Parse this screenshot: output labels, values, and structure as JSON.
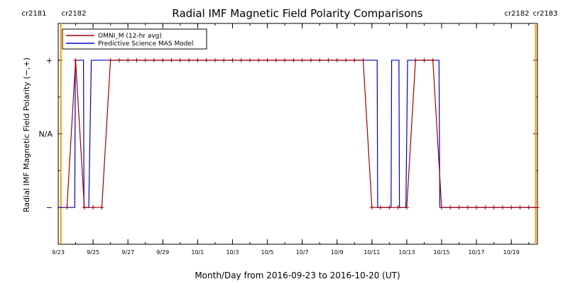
{
  "chart_data": {
    "type": "line",
    "title": "Radial IMF Magnetic Field Polarity Comparisons",
    "xlabel": "Month/Day from 2016-09-23 to 2016-10-20 (UT)",
    "ylabel": "Radial IMF Magnetic Field Polarity (−,+)",
    "x_range_days": [
      0,
      27.5
    ],
    "y_range": [
      -1.5,
      1.5
    ],
    "x_ticks": [
      {
        "day": 0,
        "label": "9/23"
      },
      {
        "day": 2,
        "label": "9/25"
      },
      {
        "day": 4,
        "label": "9/27"
      },
      {
        "day": 6,
        "label": "9/29"
      },
      {
        "day": 8,
        "label": "10/1"
      },
      {
        "day": 10,
        "label": "10/3"
      },
      {
        "day": 12,
        "label": "10/5"
      },
      {
        "day": 14,
        "label": "10/7"
      },
      {
        "day": 16,
        "label": "10/9"
      },
      {
        "day": 18,
        "label": "10/11"
      },
      {
        "day": 20,
        "label": "10/13"
      },
      {
        "day": 22,
        "label": "10/15"
      },
      {
        "day": 24,
        "label": "10/17"
      },
      {
        "day": 26,
        "label": "10/19"
      }
    ],
    "y_ticks": [
      {
        "value": 1,
        "label": "+"
      },
      {
        "value": 0,
        "label": "N/A"
      },
      {
        "value": -1,
        "label": "−"
      }
    ],
    "legend": {
      "placement": "top-left",
      "entries": [
        {
          "name": "OMNI_M (12-hr avg)",
          "color": "#a00000"
        },
        {
          "name": "Predictive Science MAS Model",
          "color": "#0000cc"
        }
      ]
    },
    "carrington_markers": [
      {
        "day": 0.15,
        "left_label": "cr2181",
        "right_label": "cr2182"
      },
      {
        "day": 27.4,
        "left_label": "cr2182",
        "right_label": "cr2183"
      }
    ],
    "marker_color": "#ff9900",
    "series": [
      {
        "name": "OMNI_M (12-hr avg)",
        "color": "#a00000",
        "points": [
          [
            0.5,
            -1
          ],
          [
            1.0,
            1
          ],
          [
            1.5,
            -1
          ],
          [
            2.0,
            -1
          ],
          [
            2.5,
            -1
          ],
          [
            3.0,
            1
          ],
          [
            3.5,
            1
          ],
          [
            4.0,
            1
          ],
          [
            4.5,
            1
          ],
          [
            5.0,
            1
          ],
          [
            5.5,
            1
          ],
          [
            6.0,
            1
          ],
          [
            6.5,
            1
          ],
          [
            7.0,
            1
          ],
          [
            7.5,
            1
          ],
          [
            8.0,
            1
          ],
          [
            8.5,
            1
          ],
          [
            9.0,
            1
          ],
          [
            9.5,
            1
          ],
          [
            10.0,
            1
          ],
          [
            10.5,
            1
          ],
          [
            11.0,
            1
          ],
          [
            11.5,
            1
          ],
          [
            12.0,
            1
          ],
          [
            12.5,
            1
          ],
          [
            13.0,
            1
          ],
          [
            13.5,
            1
          ],
          [
            14.0,
            1
          ],
          [
            14.5,
            1
          ],
          [
            15.0,
            1
          ],
          [
            15.5,
            1
          ],
          [
            16.0,
            1
          ],
          [
            16.5,
            1
          ],
          [
            17.0,
            1
          ],
          [
            17.5,
            1
          ],
          [
            18.0,
            -1
          ],
          [
            18.5,
            -1
          ],
          [
            19.0,
            -1
          ],
          [
            19.5,
            -1
          ],
          [
            20.0,
            -1
          ],
          [
            20.5,
            1
          ],
          [
            21.0,
            1
          ],
          [
            21.5,
            1
          ],
          [
            22.0,
            -1
          ],
          [
            22.5,
            -1
          ],
          [
            23.0,
            -1
          ],
          [
            23.5,
            -1
          ],
          [
            24.0,
            -1
          ],
          [
            24.5,
            -1
          ],
          [
            25.0,
            -1
          ],
          [
            25.5,
            -1
          ],
          [
            26.0,
            -1
          ],
          [
            26.5,
            -1
          ],
          [
            27.0,
            -1
          ],
          [
            27.5,
            -1
          ]
        ]
      },
      {
        "name": "Predictive Science MAS Model",
        "color": "#0000cc",
        "points": [
          [
            0,
            -1
          ],
          [
            0.95,
            -1
          ],
          [
            0.98,
            1
          ],
          [
            1.45,
            1
          ],
          [
            1.48,
            -1
          ],
          [
            1.75,
            -1
          ],
          [
            1.9,
            1
          ],
          [
            18.3,
            1
          ],
          [
            18.33,
            -1
          ],
          [
            19.1,
            -1
          ],
          [
            19.13,
            1
          ],
          [
            19.55,
            1
          ],
          [
            19.58,
            -1
          ],
          [
            19.95,
            -1
          ],
          [
            20.05,
            1
          ],
          [
            21.85,
            1
          ],
          [
            21.9,
            -1
          ],
          [
            27.5,
            -1
          ]
        ]
      }
    ]
  }
}
